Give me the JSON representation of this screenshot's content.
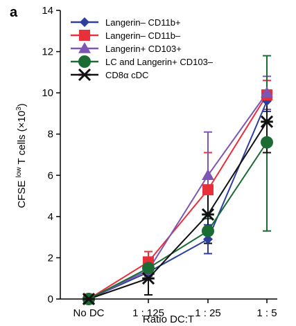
{
  "panel_label": "a",
  "chart_data": {
    "type": "line",
    "categories": [
      "No DC",
      "1 : 125",
      "1 : 25",
      "1 : 5"
    ],
    "xlabel": "Ratio DC:T",
    "ylabel": {
      "main": "CFSE ",
      "sup1": "low",
      "mid": " T cells (×10",
      "sup2": "3",
      "end": ")"
    },
    "ylim": [
      0,
      14
    ],
    "yticks": [
      0,
      2,
      4,
      6,
      8,
      10,
      12,
      14
    ],
    "grid": false,
    "legend_position": "top-left",
    "series": [
      {
        "name": "Langerin– CD11b+",
        "color": "#2d3e9c",
        "marker": "diamond",
        "values": [
          0,
          1.3,
          2.9,
          9.6
        ],
        "err_low": [
          0,
          0.2,
          0.7,
          0.5
        ],
        "err_high": [
          0,
          0.2,
          0.7,
          0.5
        ]
      },
      {
        "name": "Langerin– CD11b–",
        "color": "#e8303a",
        "marker": "square",
        "values": [
          0,
          1.8,
          5.3,
          9.9
        ],
        "err_low": [
          0,
          0.5,
          1.8,
          0.7
        ],
        "err_high": [
          0,
          0.5,
          1.8,
          0.7
        ]
      },
      {
        "name": "Langerin+ CD103+",
        "color": "#7d55b4",
        "marker": "triangle",
        "values": [
          0,
          1.4,
          6.0,
          10.0
        ],
        "err_low": [
          0,
          0.3,
          2.1,
          0.8
        ],
        "err_high": [
          0,
          0.3,
          2.1,
          0.8
        ]
      },
      {
        "name": "LC and Langerin+ CD103–",
        "color": "#1b6b34",
        "marker": "circle",
        "values": [
          0,
          1.5,
          3.3,
          7.6
        ],
        "err_low": [
          0,
          0.3,
          0.6,
          4.3
        ],
        "err_high": [
          0,
          0.3,
          0.6,
          4.2
        ]
      },
      {
        "name": "CD8α cDC",
        "color": "#111111",
        "marker": "star",
        "values": [
          0,
          1.0,
          4.1,
          8.6
        ],
        "err_low": [
          0,
          0.8,
          1.4,
          1.5
        ],
        "err_high": [
          0,
          0.8,
          1.4,
          1.5
        ]
      }
    ]
  }
}
